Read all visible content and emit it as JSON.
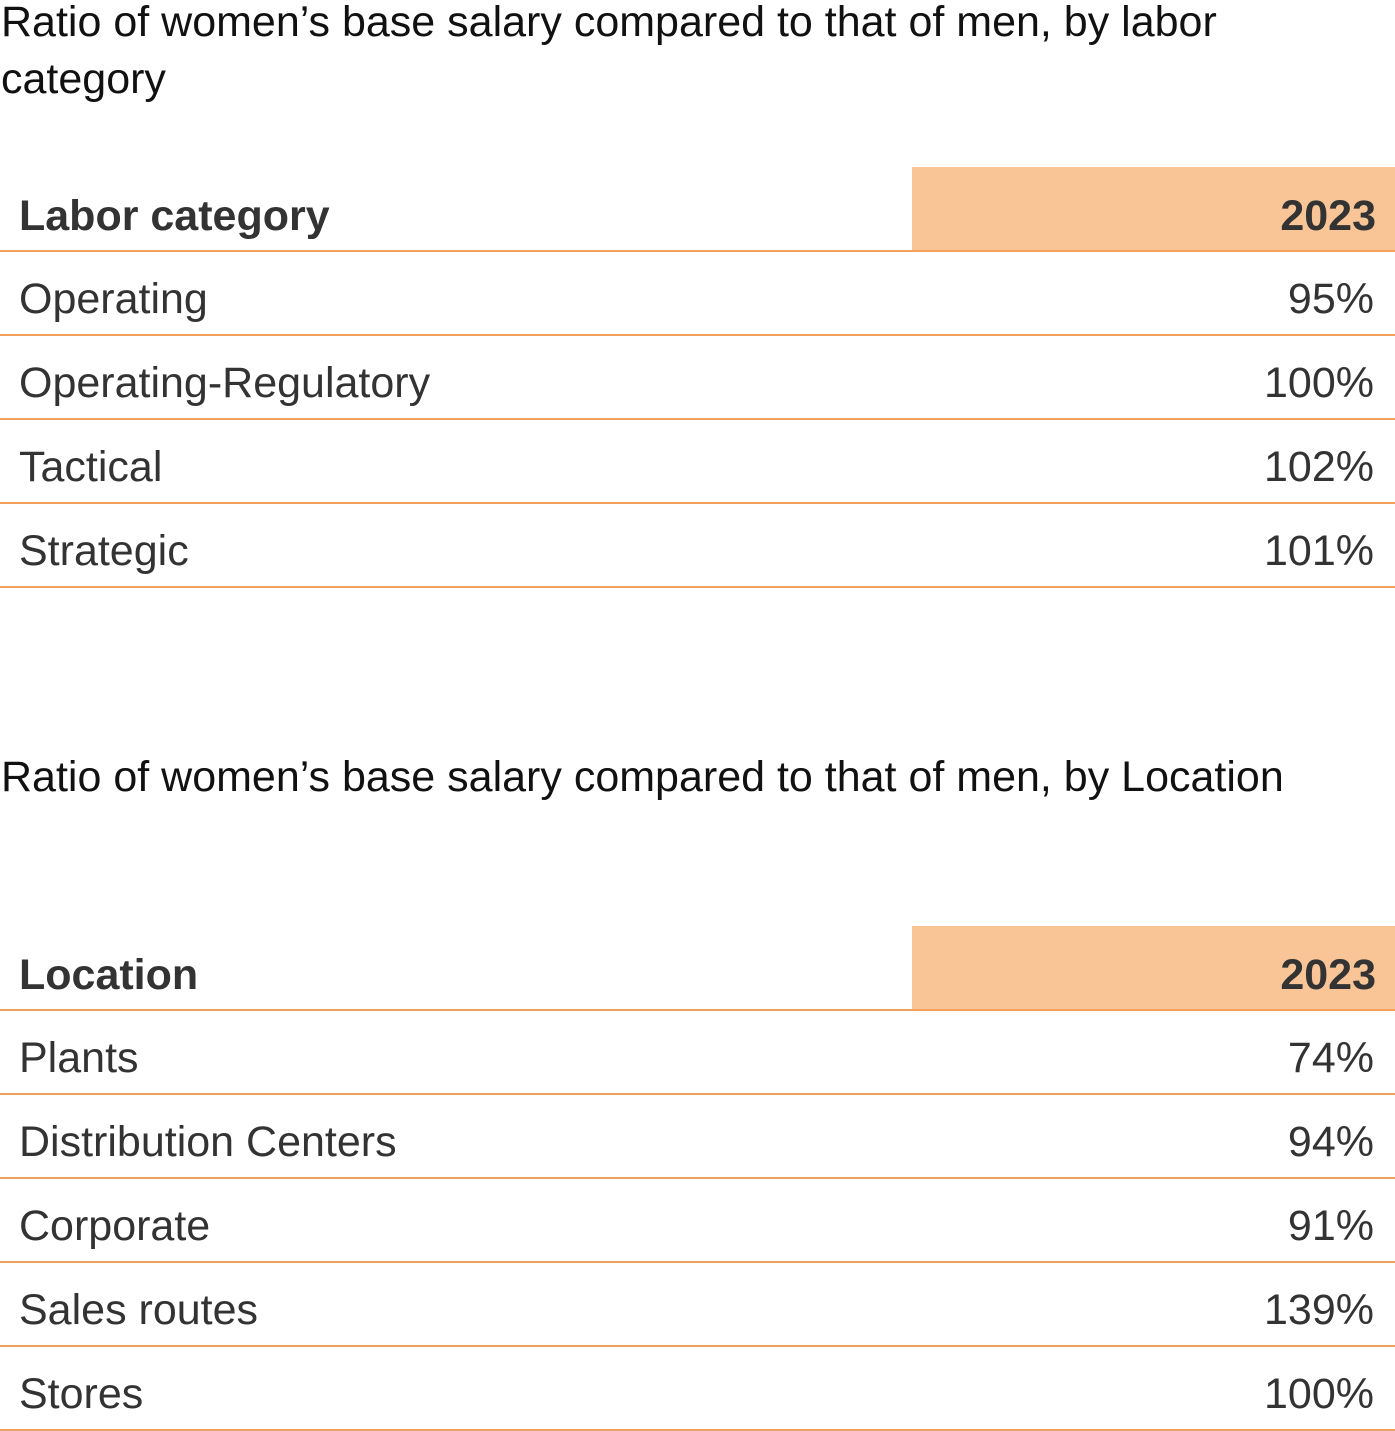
{
  "colors": {
    "header_highlight": "#f9c596",
    "rule": "#f2a05a",
    "text": "#333333"
  },
  "tables": [
    {
      "title": "Ratio of women’s base salary compared to that of men, by labor category",
      "column_header": "Labor category",
      "year_header": "2023",
      "rows": [
        {
          "label": "Operating",
          "value": "95%"
        },
        {
          "label": "Operating-Regulatory",
          "value": "100%"
        },
        {
          "label": "Tactical",
          "value": "102%"
        },
        {
          "label": "Strategic",
          "value": "101%"
        }
      ]
    },
    {
      "title": "Ratio of women’s base salary compared to that of men, by Location",
      "column_header": "Location",
      "year_header": "2023",
      "rows": [
        {
          "label": "Plants",
          "value": "74%"
        },
        {
          "label": "Distribution Centers",
          "value": "94%"
        },
        {
          "label": "Corporate",
          "value": "91%"
        },
        {
          "label": "Sales routes",
          "value": "139%"
        },
        {
          "label": "Stores",
          "value": "100%"
        }
      ]
    }
  ]
}
